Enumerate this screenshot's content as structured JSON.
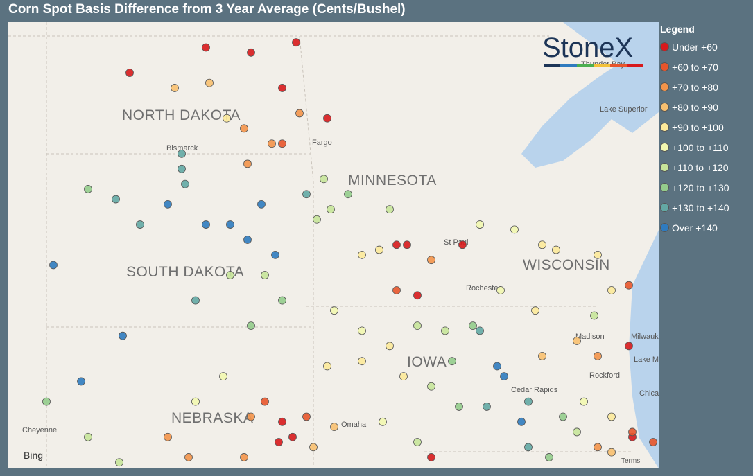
{
  "header": {
    "title": "Corn Spot Basis Difference from 3 Year Average (Cents/Bushel)"
  },
  "legend": {
    "title": "Legend",
    "items": [
      {
        "label": "Under +60",
        "color": "#d7191c"
      },
      {
        "label": "+60 to +70",
        "color": "#e8552b"
      },
      {
        "label": "+70 to +80",
        "color": "#f3944a"
      },
      {
        "label": "+80 to +90",
        "color": "#f8c070"
      },
      {
        "label": "+90 to +100",
        "color": "#fce99a"
      },
      {
        "label": "+100 to +110",
        "color": "#f2f7b0"
      },
      {
        "label": "+110 to +120",
        "color": "#c6e49a"
      },
      {
        "label": "+120 to +130",
        "color": "#94cc8c"
      },
      {
        "label": "+130 to +140",
        "color": "#63a8a4"
      },
      {
        "label": "Over +140",
        "color": "#2f7bbf"
      }
    ]
  },
  "map_data": {
    "lon_range": [
      -105.8,
      -87.04
    ],
    "lat_range": [
      40.58,
      49.4
    ],
    "labels": [
      "NORTH DAKOTA",
      "MINNESOTA",
      "SOUTH DAKOTA",
      "WISCONSIN",
      "NEBRASKA",
      "IOWA",
      "Bismarck",
      "Fargo",
      "Lake Superior",
      "Thunder Bay",
      "St Paul",
      "Rochester",
      "Madison",
      "Milwaukee",
      "Lake Michigan",
      "Rockford",
      "Cedar Rapids",
      "Chicago",
      "Omaha",
      "Cheyenne"
    ],
    "logo": "StoneX",
    "attribution": "Bing",
    "terms": "Terms",
    "points": [
      [
        -100.1,
        48.9,
        0
      ],
      [
        -98.8,
        48.8,
        0
      ],
      [
        -97.9,
        48.1,
        0
      ],
      [
        -97.5,
        49.0,
        0
      ],
      [
        -96.6,
        47.5,
        0
      ],
      [
        -102.3,
        48.4,
        0
      ],
      [
        -99.0,
        47.3,
        2
      ],
      [
        -97.4,
        47.6,
        2
      ],
      [
        -97.9,
        47.0,
        1
      ],
      [
        -98.2,
        47.0,
        2
      ],
      [
        -101.0,
        48.1,
        3
      ],
      [
        -100.0,
        48.2,
        3
      ],
      [
        -99.5,
        47.5,
        4
      ],
      [
        -98.9,
        46.6,
        2
      ],
      [
        -100.8,
        46.8,
        8
      ],
      [
        -100.8,
        46.5,
        8
      ],
      [
        -101.2,
        45.8,
        9
      ],
      [
        -100.1,
        45.4,
        9
      ],
      [
        -99.4,
        45.4,
        9
      ],
      [
        -98.9,
        45.1,
        9
      ],
      [
        -98.5,
        45.8,
        9
      ],
      [
        -98.1,
        44.8,
        9
      ],
      [
        -102.5,
        43.2,
        9
      ],
      [
        -103.7,
        42.3,
        9
      ],
      [
        -104.5,
        44.6,
        9
      ],
      [
        -102.7,
        45.9,
        8
      ],
      [
        -102.0,
        45.4,
        8
      ],
      [
        -100.7,
        46.2,
        8
      ],
      [
        -100.4,
        43.9,
        8
      ],
      [
        -103.5,
        46.1,
        7
      ],
      [
        -104.7,
        41.9,
        7
      ],
      [
        -99.4,
        44.4,
        6
      ],
      [
        -98.4,
        44.4,
        6
      ],
      [
        -97.9,
        43.9,
        7
      ],
      [
        -98.8,
        43.4,
        7
      ],
      [
        -96.7,
        46.3,
        6
      ],
      [
        -96.0,
        46.0,
        7
      ],
      [
        -94.8,
        45.7,
        6
      ],
      [
        -96.9,
        45.5,
        6
      ],
      [
        -95.6,
        44.8,
        4
      ],
      [
        -95.1,
        44.9,
        4
      ],
      [
        -94.6,
        45.0,
        0
      ],
      [
        -94.3,
        45.0,
        0
      ],
      [
        -93.6,
        44.7,
        2
      ],
      [
        -92.7,
        45.0,
        0
      ],
      [
        -92.2,
        45.4,
        5
      ],
      [
        -91.2,
        45.3,
        5
      ],
      [
        -94.0,
        44.0,
        0
      ],
      [
        -94.6,
        44.1,
        1
      ],
      [
        -96.5,
        45.7,
        6
      ],
      [
        -97.2,
        46.0,
        8
      ],
      [
        -90.4,
        45.0,
        4
      ],
      [
        -90.0,
        44.9,
        4
      ],
      [
        -88.8,
        44.8,
        4
      ],
      [
        -87.9,
        44.2,
        1
      ],
      [
        -88.4,
        44.1,
        4
      ],
      [
        -91.6,
        44.1,
        5
      ],
      [
        -90.6,
        43.7,
        4
      ],
      [
        -88.9,
        43.6,
        6
      ],
      [
        -87.9,
        43.0,
        0
      ],
      [
        -89.4,
        43.1,
        3
      ],
      [
        -88.8,
        42.8,
        2
      ],
      [
        -90.4,
        42.8,
        3
      ],
      [
        -96.4,
        43.7,
        5
      ],
      [
        -95.6,
        43.3,
        5
      ],
      [
        -94.8,
        43.0,
        4
      ],
      [
        -94.0,
        43.4,
        6
      ],
      [
        -93.2,
        43.3,
        6
      ],
      [
        -92.4,
        43.4,
        7
      ],
      [
        -92.2,
        43.3,
        8
      ],
      [
        -91.7,
        42.6,
        9
      ],
      [
        -91.5,
        42.4,
        9
      ],
      [
        -92.0,
        41.8,
        8
      ],
      [
        -92.8,
        41.8,
        7
      ],
      [
        -93.6,
        42.2,
        6
      ],
      [
        -94.4,
        42.4,
        4
      ],
      [
        -95.6,
        42.7,
        4
      ],
      [
        -96.6,
        42.6,
        4
      ],
      [
        -93.0,
        42.7,
        7
      ],
      [
        -90.8,
        41.9,
        8
      ],
      [
        -91.0,
        41.5,
        9
      ],
      [
        -98.4,
        41.9,
        1
      ],
      [
        -97.9,
        41.5,
        0
      ],
      [
        -97.6,
        41.2,
        0
      ],
      [
        -98.0,
        41.1,
        0
      ],
      [
        -97.2,
        41.6,
        1
      ],
      [
        -98.8,
        41.6,
        2
      ],
      [
        -97.0,
        41.0,
        3
      ],
      [
        -96.4,
        41.4,
        3
      ],
      [
        -101.2,
        41.2,
        2
      ],
      [
        -100.6,
        40.8,
        2
      ],
      [
        -99.0,
        40.8,
        2
      ],
      [
        -102.6,
        40.7,
        6
      ],
      [
        -103.5,
        41.2,
        6
      ],
      [
        -99.6,
        42.4,
        5
      ],
      [
        -100.4,
        41.9,
        5
      ],
      [
        -95.0,
        41.5,
        5
      ],
      [
        -94.0,
        41.1,
        6
      ],
      [
        -93.6,
        40.8,
        0
      ],
      [
        -88.8,
        41.0,
        2
      ],
      [
        -88.4,
        40.9,
        3
      ],
      [
        -87.8,
        41.2,
        0
      ],
      [
        -87.8,
        41.3,
        1
      ],
      [
        -87.2,
        41.1,
        1
      ],
      [
        -89.4,
        41.3,
        6
      ],
      [
        -89.8,
        41.6,
        7
      ],
      [
        -90.2,
        40.8,
        7
      ],
      [
        -90.8,
        41.0,
        8
      ],
      [
        -89.2,
        41.9,
        5
      ],
      [
        -88.4,
        41.6,
        4
      ]
    ]
  }
}
